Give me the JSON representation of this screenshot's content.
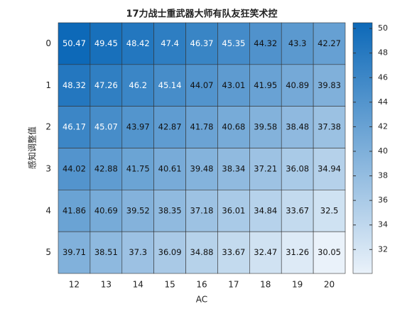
{
  "chart_data": {
    "type": "heatmap",
    "title": "17力战士重武器大师有队友狂笑术控",
    "x_label": "AC",
    "y_label": "感知调整值",
    "x": [
      12,
      13,
      14,
      15,
      16,
      17,
      18,
      19,
      20
    ],
    "y": [
      0,
      1,
      2,
      3,
      4,
      5
    ],
    "values": [
      [
        50.47,
        49.45,
        48.42,
        47.4,
        46.37,
        45.35,
        44.32,
        43.3,
        42.27
      ],
      [
        48.32,
        47.26,
        46.2,
        45.14,
        44.07,
        43.01,
        41.95,
        40.89,
        39.83
      ],
      [
        46.17,
        45.07,
        43.97,
        42.87,
        41.78,
        40.68,
        39.58,
        38.48,
        37.38
      ],
      [
        44.02,
        42.88,
        41.75,
        40.61,
        39.48,
        38.34,
        37.21,
        36.08,
        34.94
      ],
      [
        41.86,
        40.69,
        39.52,
        38.35,
        37.18,
        36.01,
        34.84,
        33.67,
        32.5
      ],
      [
        39.71,
        38.51,
        37.3,
        36.09,
        34.88,
        33.67,
        32.47,
        31.26,
        30.05
      ]
    ],
    "colormap": [
      "#eaf2fa",
      "#0d69b8"
    ],
    "clim": [
      30.05,
      50.47
    ],
    "cticks": [
      32,
      34,
      36,
      38,
      40,
      42,
      44,
      46,
      48,
      50
    ]
  }
}
